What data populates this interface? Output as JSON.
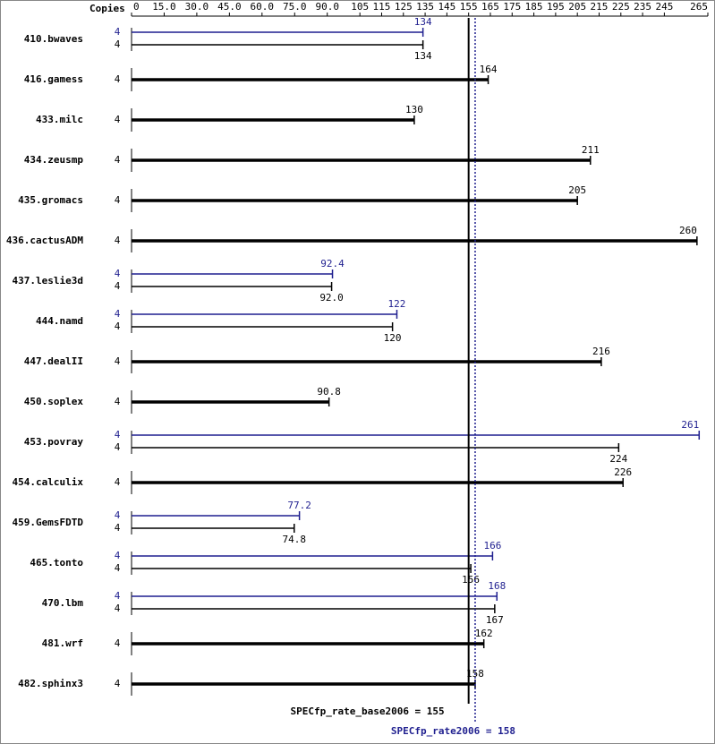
{
  "chart_data": {
    "type": "bar",
    "orientation": "horizontal",
    "copies_header": "Copies",
    "categories": [
      "410.bwaves",
      "416.gamess",
      "433.milc",
      "434.zeusmp",
      "435.gromacs",
      "436.cactusADM",
      "437.leslie3d",
      "444.namd",
      "447.dealII",
      "450.soplex",
      "453.povray",
      "454.calculix",
      "459.GemsFDTD",
      "465.tonto",
      "470.lbm",
      "481.wrf",
      "482.sphinx3"
    ],
    "series": [
      {
        "color": "#000000",
        "copies": [
          4,
          4,
          4,
          4,
          4,
          4,
          4,
          4,
          4,
          4,
          4,
          4,
          4,
          4,
          4,
          4,
          4
        ],
        "values": [
          134,
          164,
          130,
          211,
          205,
          260,
          92.0,
          120,
          216,
          90.8,
          224,
          226,
          74.8,
          156,
          167,
          162,
          158
        ],
        "value_labels": [
          "134",
          "164",
          "130",
          "211",
          "205",
          "260",
          "92.0",
          "120",
          "216",
          "90.8",
          "224",
          "226",
          "74.8",
          "156",
          "167",
          "162",
          "158"
        ]
      },
      {
        "color": "#1f1f8f",
        "copies": [
          4,
          null,
          null,
          null,
          null,
          null,
          4,
          4,
          null,
          null,
          4,
          null,
          4,
          4,
          4,
          null,
          null
        ],
        "values": [
          134,
          null,
          null,
          null,
          null,
          null,
          92.4,
          122,
          null,
          null,
          261,
          null,
          77.2,
          166,
          168,
          null,
          null
        ]
      }
    ],
    "reference_lines": [
      {
        "label": "SPECfp_rate_base2006 = 155",
        "value": 155,
        "color": "#000000"
      },
      {
        "label": "SPECfp_rate2006 = 158",
        "value": 158,
        "color": "#1f1f8f"
      }
    ],
    "xlim": [
      0,
      265
    ],
    "xticks": [
      0,
      {
        "value": 15,
        "label": "15.0"
      },
      {
        "value": 30,
        "label": "30.0"
      },
      {
        "value": 45,
        "label": "45.0"
      },
      {
        "value": 60,
        "label": "60.0"
      },
      {
        "value": 75,
        "label": "75.0"
      },
      {
        "value": 90,
        "label": "90.0"
      },
      105,
      115,
      125,
      135,
      145,
      155,
      165,
      175,
      185,
      195,
      205,
      215,
      225,
      235,
      245,
      265
    ]
  }
}
